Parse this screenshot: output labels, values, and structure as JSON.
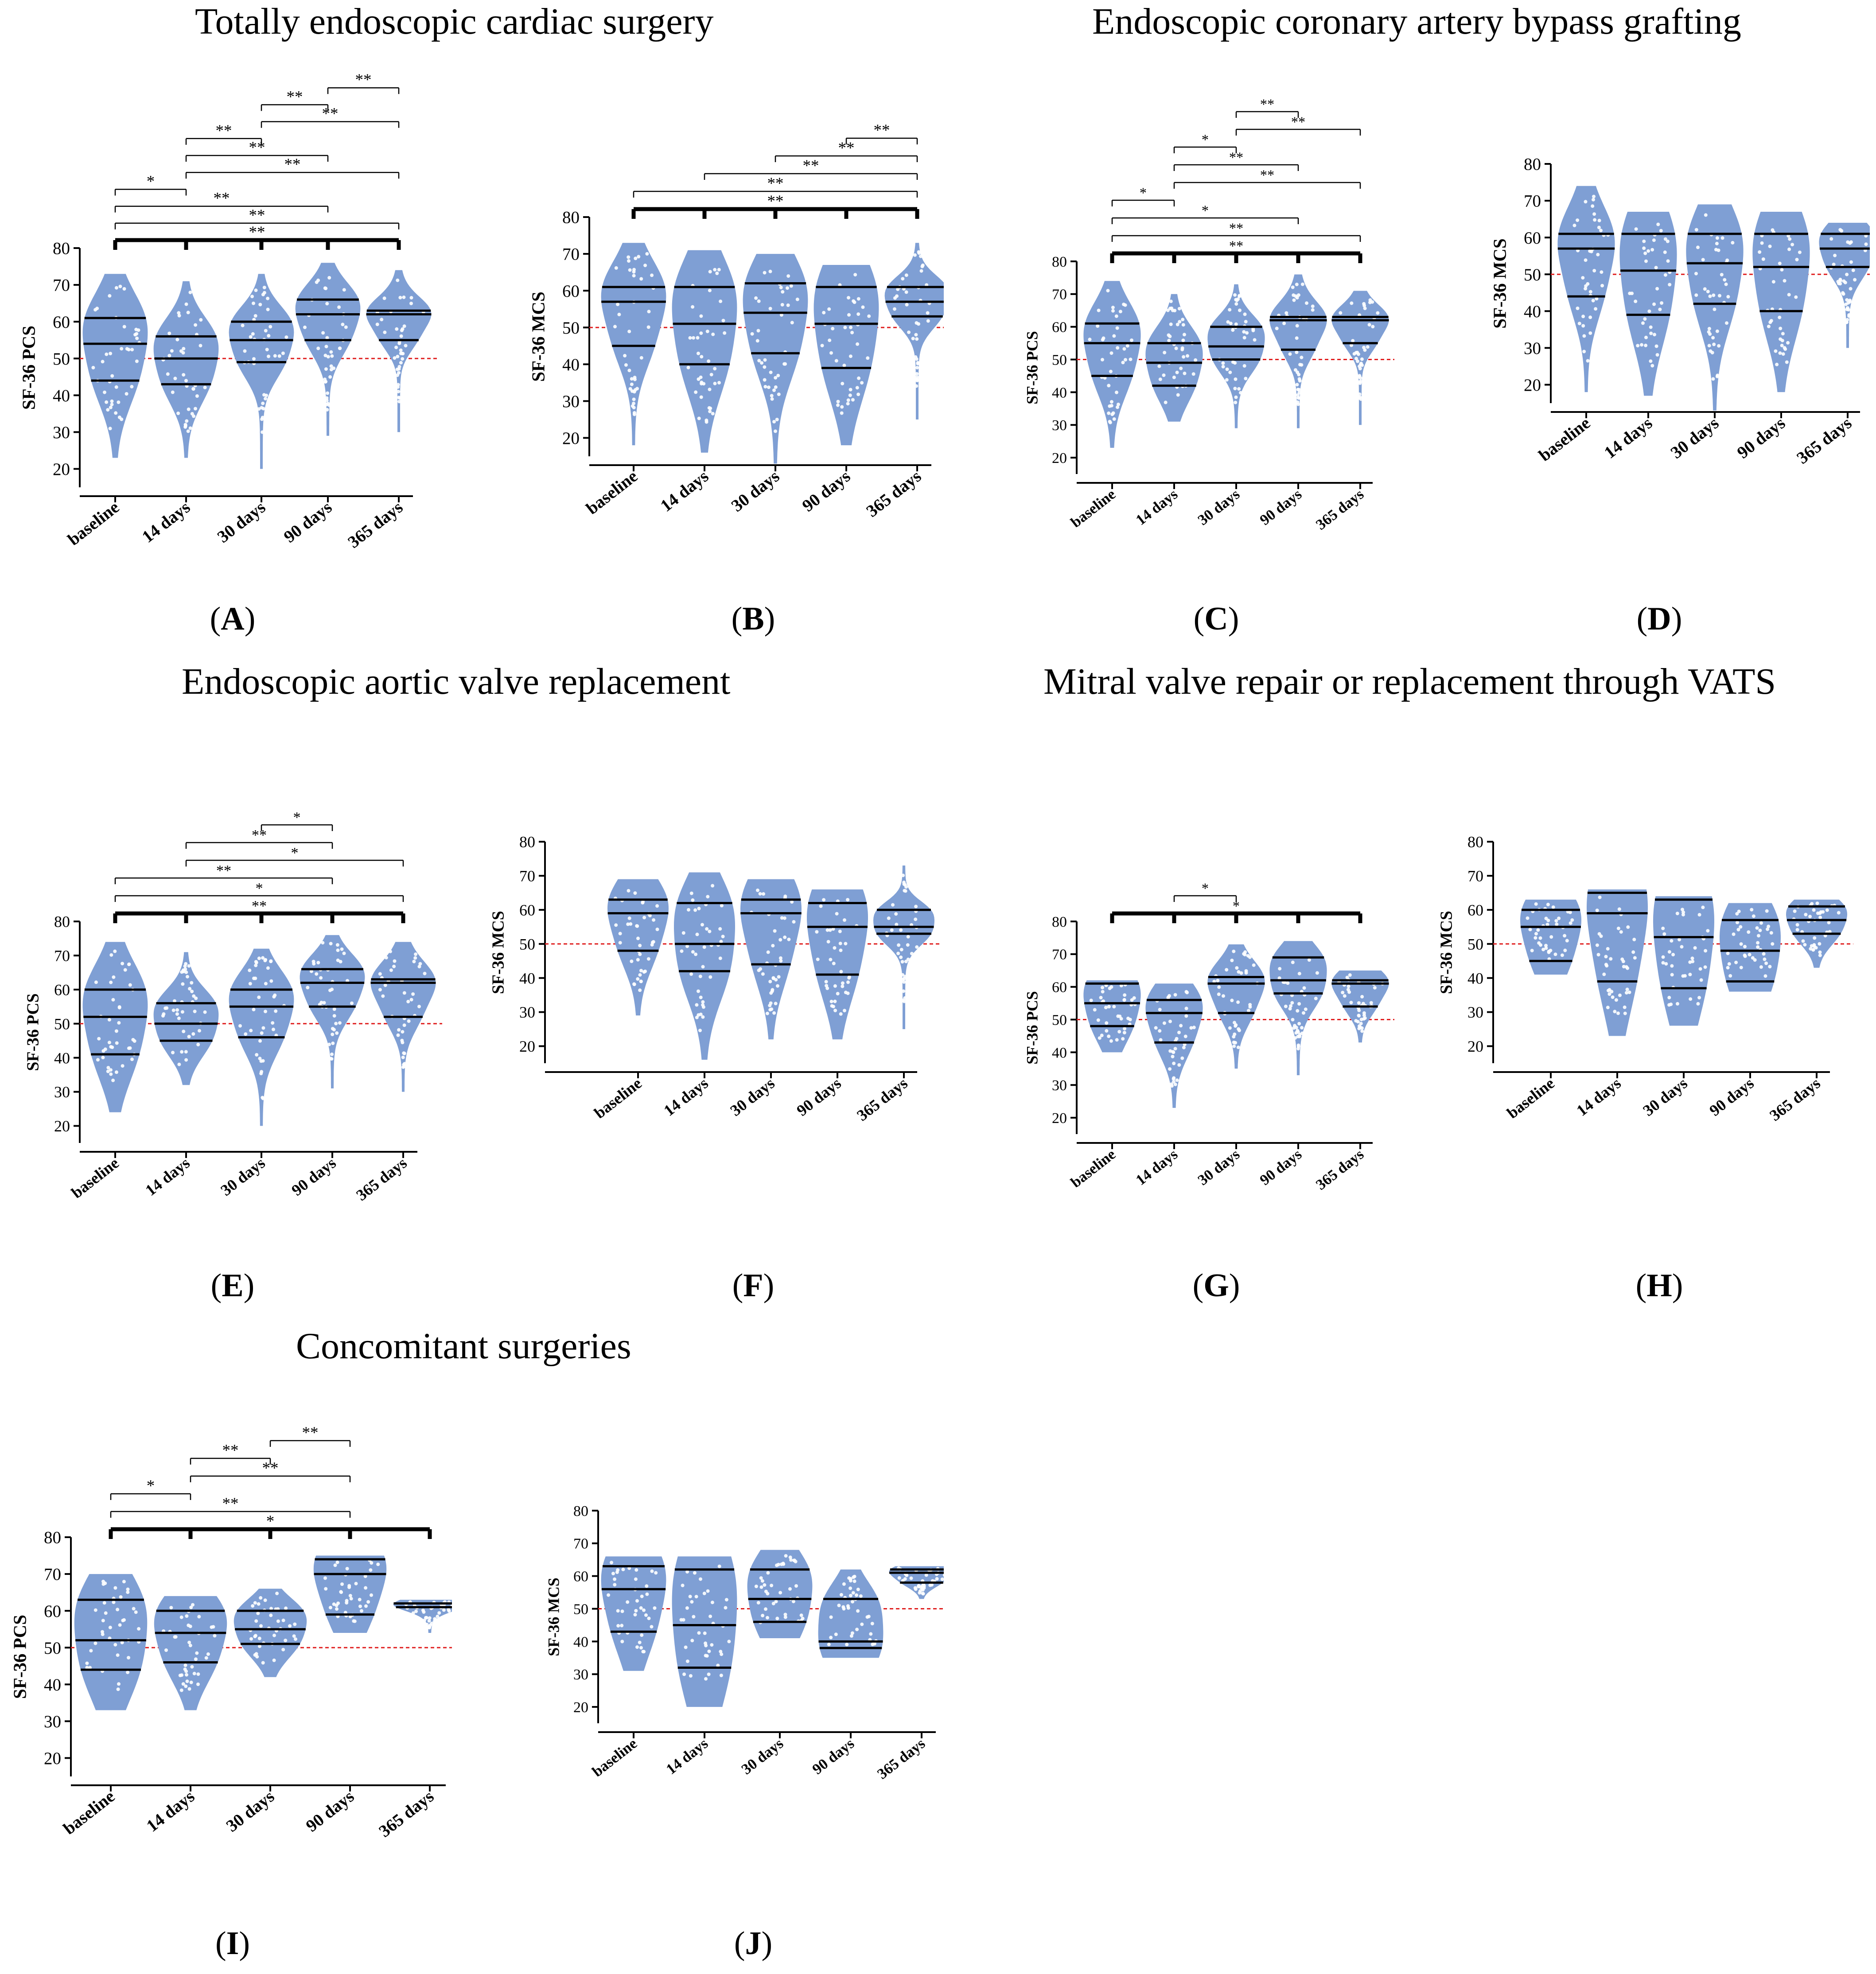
{
  "sections": [
    {
      "title": "Totally endoscopic cardiac surgery"
    },
    {
      "title": "Endoscopic coronary artery bypass grafting"
    },
    {
      "title": "Endoscopic aortic valve replacement"
    },
    {
      "title": "Mitral valve repair or replacement through VATS"
    },
    {
      "title": "Concomitant surgeries"
    }
  ],
  "colors": {
    "violin": "#7f9fd4",
    "dot": "#ffffff",
    "reference": "#e02020",
    "axis": "#000000"
  },
  "chart_data": [
    {
      "id": "A",
      "label_letter": "A",
      "type": "violin",
      "ylabel": "SF-36 PCS",
      "ylim": [
        15,
        80
      ],
      "yticks": [
        20,
        30,
        40,
        50,
        60,
        70,
        80
      ],
      "categories": [
        "baseline",
        "14 days",
        "30 days",
        "90 days",
        "365 days"
      ],
      "reference_line": 50,
      "groups": [
        {
          "min": 23,
          "max": 73,
          "q1": 44,
          "median": 54,
          "q3": 61
        },
        {
          "min": 23,
          "max": 71,
          "q1": 43,
          "median": 50,
          "q3": 56
        },
        {
          "min": 20,
          "max": 73,
          "q1": 49,
          "median": 55,
          "q3": 60
        },
        {
          "min": 29,
          "max": 76,
          "q1": 55,
          "median": 62,
          "q3": 66
        },
        {
          "min": 30,
          "max": 74,
          "q1": 55,
          "median": 62,
          "q3": 63
        }
      ],
      "significance": [
        {
          "from": 0,
          "to": 4,
          "label": "**",
          "bold": true
        },
        {
          "from": 0,
          "to": 4,
          "label": "**"
        },
        {
          "from": 0,
          "to": 3,
          "label": "**"
        },
        {
          "from": 0,
          "to": 1,
          "label": "*"
        },
        {
          "from": 1,
          "to": 4,
          "label": "**"
        },
        {
          "from": 1,
          "to": 3,
          "label": "**"
        },
        {
          "from": 1,
          "to": 2,
          "label": "**"
        },
        {
          "from": 2,
          "to": 4,
          "label": "**"
        },
        {
          "from": 2,
          "to": 3,
          "label": "**"
        },
        {
          "from": 3,
          "to": 4,
          "label": "**"
        }
      ]
    },
    {
      "id": "B",
      "label_letter": "B",
      "type": "violin",
      "ylabel": "SF-36 MCS",
      "ylim": [
        15,
        80
      ],
      "yticks": [
        20,
        30,
        40,
        50,
        60,
        70,
        80
      ],
      "categories": [
        "baseline",
        "14 days",
        "30 days",
        "90 days",
        "365 days"
      ],
      "reference_line": 50,
      "groups": [
        {
          "min": 18,
          "max": 73,
          "q1": 45,
          "median": 57,
          "q3": 61
        },
        {
          "min": 16,
          "max": 71,
          "q1": 40,
          "median": 51,
          "q3": 61
        },
        {
          "min": 13,
          "max": 70,
          "q1": 43,
          "median": 54,
          "q3": 62
        },
        {
          "min": 18,
          "max": 67,
          "q1": 39,
          "median": 51,
          "q3": 61
        },
        {
          "min": 25,
          "max": 73,
          "q1": 53,
          "median": 57,
          "q3": 61
        }
      ],
      "significance": [
        {
          "from": 0,
          "to": 4,
          "label": "**",
          "bold": true
        },
        {
          "from": 0,
          "to": 4,
          "label": "**"
        },
        {
          "from": 1,
          "to": 4,
          "label": "**"
        },
        {
          "from": 2,
          "to": 4,
          "label": "**"
        },
        {
          "from": 3,
          "to": 4,
          "label": "**"
        }
      ]
    },
    {
      "id": "C",
      "label_letter": "C",
      "type": "violin",
      "ylabel": "SF-36 PCS",
      "ylim": [
        15,
        80
      ],
      "yticks": [
        20,
        30,
        40,
        50,
        60,
        70,
        80
      ],
      "categories": [
        "baseline",
        "14 days",
        "30 days",
        "90 days",
        "365 days"
      ],
      "reference_line": 50,
      "groups": [
        {
          "min": 23,
          "max": 74,
          "q1": 45,
          "median": 55,
          "q3": 61
        },
        {
          "min": 31,
          "max": 70,
          "q1": 42,
          "median": 49,
          "q3": 55
        },
        {
          "min": 29,
          "max": 73,
          "q1": 50,
          "median": 54,
          "q3": 60
        },
        {
          "min": 29,
          "max": 76,
          "q1": 53,
          "median": 62,
          "q3": 63
        },
        {
          "min": 30,
          "max": 71,
          "q1": 55,
          "median": 62,
          "q3": 63
        }
      ],
      "significance": [
        {
          "from": 0,
          "to": 4,
          "label": "**",
          "bold": true
        },
        {
          "from": 0,
          "to": 4,
          "label": "**"
        },
        {
          "from": 0,
          "to": 3,
          "label": "*"
        },
        {
          "from": 0,
          "to": 1,
          "label": "*"
        },
        {
          "from": 1,
          "to": 4,
          "label": "**"
        },
        {
          "from": 1,
          "to": 3,
          "label": "**"
        },
        {
          "from": 1,
          "to": 2,
          "label": "*"
        },
        {
          "from": 2,
          "to": 4,
          "label": "**"
        },
        {
          "from": 2,
          "to": 3,
          "label": "**"
        }
      ]
    },
    {
      "id": "D",
      "label_letter": "D",
      "type": "violin",
      "ylabel": "SF-36 MCS",
      "ylim": [
        15,
        80
      ],
      "yticks": [
        20,
        30,
        40,
        50,
        60,
        70,
        80
      ],
      "categories": [
        "baseline",
        "14 days",
        "30 days",
        "90 days",
        "365 days"
      ],
      "reference_line": 50,
      "groups": [
        {
          "min": 18,
          "max": 74,
          "q1": 44,
          "median": 57,
          "q3": 61
        },
        {
          "min": 17,
          "max": 67,
          "q1": 39,
          "median": 51,
          "q3": 61
        },
        {
          "min": 13,
          "max": 69,
          "q1": 42,
          "median": 53,
          "q3": 61
        },
        {
          "min": 18,
          "max": 67,
          "q1": 40,
          "median": 52,
          "q3": 61
        },
        {
          "min": 30,
          "max": 64,
          "q1": 52,
          "median": 57,
          "q3": 61
        }
      ],
      "significance": []
    },
    {
      "id": "E",
      "label_letter": "E",
      "type": "violin",
      "ylabel": "SF-36 PCS",
      "ylim": [
        15,
        80
      ],
      "yticks": [
        20,
        30,
        40,
        50,
        60,
        70,
        80
      ],
      "categories": [
        "baseline",
        "14 days",
        "30 days",
        "90 days",
        "365 days"
      ],
      "reference_line": 50,
      "groups": [
        {
          "min": 24,
          "max": 74,
          "q1": 41,
          "median": 52,
          "q3": 60
        },
        {
          "min": 32,
          "max": 71,
          "q1": 45,
          "median": 50,
          "q3": 56
        },
        {
          "min": 20,
          "max": 72,
          "q1": 46,
          "median": 55,
          "q3": 60
        },
        {
          "min": 31,
          "max": 76,
          "q1": 55,
          "median": 62,
          "q3": 66
        },
        {
          "min": 30,
          "max": 74,
          "q1": 52,
          "median": 62,
          "q3": 63
        }
      ],
      "significance": [
        {
          "from": 0,
          "to": 4,
          "label": "**",
          "bold": true
        },
        {
          "from": 0,
          "to": 4,
          "label": "*"
        },
        {
          "from": 0,
          "to": 3,
          "label": "**"
        },
        {
          "from": 1,
          "to": 4,
          "label": "*"
        },
        {
          "from": 1,
          "to": 3,
          "label": "**"
        },
        {
          "from": 2,
          "to": 3,
          "label": "*"
        }
      ]
    },
    {
      "id": "F",
      "label_letter": "F",
      "type": "violin",
      "ylabel": "SF-36 MCS",
      "ylim": [
        15,
        80
      ],
      "yticks": [
        20,
        30,
        40,
        50,
        60,
        70,
        80
      ],
      "categories": [
        "baseline",
        "14 days",
        "30 days",
        "90 days",
        "365 days"
      ],
      "reference_line": 50,
      "groups": [
        {
          "min": 29,
          "max": 69,
          "q1": 48,
          "median": 59,
          "q3": 63
        },
        {
          "min": 16,
          "max": 71,
          "q1": 42,
          "median": 50,
          "q3": 62
        },
        {
          "min": 22,
          "max": 69,
          "q1": 44,
          "median": 59,
          "q3": 63
        },
        {
          "min": 22,
          "max": 66,
          "q1": 41,
          "median": 55,
          "q3": 62
        },
        {
          "min": 25,
          "max": 73,
          "q1": 53,
          "median": 55,
          "q3": 60
        }
      ],
      "significance": []
    },
    {
      "id": "G",
      "label_letter": "G",
      "type": "violin",
      "ylabel": "SF-36 PCS",
      "ylim": [
        15,
        80
      ],
      "yticks": [
        20,
        30,
        40,
        50,
        60,
        70,
        80
      ],
      "categories": [
        "baseline",
        "14 days",
        "30 days",
        "90 days",
        "365 days"
      ],
      "reference_line": 50,
      "groups": [
        {
          "min": 40,
          "max": 62,
          "q1": 48,
          "median": 55,
          "q3": 61
        },
        {
          "min": 23,
          "max": 61,
          "q1": 43,
          "median": 52,
          "q3": 56
        },
        {
          "min": 35,
          "max": 73,
          "q1": 52,
          "median": 61,
          "q3": 63
        },
        {
          "min": 33,
          "max": 74,
          "q1": 58,
          "median": 62,
          "q3": 69
        },
        {
          "min": 43,
          "max": 65,
          "q1": 54,
          "median": 61,
          "q3": 62
        }
      ],
      "significance": [
        {
          "from": 0,
          "to": 4,
          "label": "*",
          "bold": true
        },
        {
          "from": 1,
          "to": 2,
          "label": "*"
        }
      ]
    },
    {
      "id": "H",
      "label_letter": "H",
      "type": "violin",
      "ylabel": "SF-36 MCS",
      "ylim": [
        15,
        80
      ],
      "yticks": [
        20,
        30,
        40,
        50,
        60,
        70,
        80
      ],
      "categories": [
        "baseline",
        "14 days",
        "30 days",
        "90 days",
        "365 days"
      ],
      "reference_line": 50,
      "groups": [
        {
          "min": 41,
          "max": 63,
          "q1": 45,
          "median": 55,
          "q3": 60
        },
        {
          "min": 23,
          "max": 66,
          "q1": 39,
          "median": 59,
          "q3": 65
        },
        {
          "min": 26,
          "max": 64,
          "q1": 37,
          "median": 52,
          "q3": 63
        },
        {
          "min": 36,
          "max": 62,
          "q1": 39,
          "median": 48,
          "q3": 57
        },
        {
          "min": 43,
          "max": 63,
          "q1": 53,
          "median": 57,
          "q3": 61
        }
      ],
      "significance": []
    },
    {
      "id": "I",
      "label_letter": "I",
      "type": "violin",
      "ylabel": "SF-36 PCS",
      "ylim": [
        15,
        80
      ],
      "yticks": [
        20,
        30,
        40,
        50,
        60,
        70,
        80
      ],
      "categories": [
        "baseline",
        "14 days",
        "30 days",
        "90 days",
        "365 days"
      ],
      "reference_line": 50,
      "groups": [
        {
          "min": 33,
          "max": 70,
          "q1": 44,
          "median": 52,
          "q3": 63
        },
        {
          "min": 33,
          "max": 64,
          "q1": 46,
          "median": 54,
          "q3": 60
        },
        {
          "min": 42,
          "max": 66,
          "q1": 51,
          "median": 55,
          "q3": 60
        },
        {
          "min": 54,
          "max": 75,
          "q1": 59,
          "median": 70,
          "q3": 74
        },
        {
          "min": 54,
          "max": 63,
          "q1": 61,
          "median": 62,
          "q3": 62
        }
      ],
      "significance": [
        {
          "from": 0,
          "to": 4,
          "label": "*",
          "bold": true
        },
        {
          "from": 0,
          "to": 3,
          "label": "**"
        },
        {
          "from": 0,
          "to": 1,
          "label": "*"
        },
        {
          "from": 1,
          "to": 3,
          "label": "**"
        },
        {
          "from": 1,
          "to": 2,
          "label": "**"
        },
        {
          "from": 2,
          "to": 3,
          "label": "**"
        }
      ]
    },
    {
      "id": "J",
      "label_letter": "J",
      "type": "violin",
      "ylabel": "SF-36 MCS",
      "ylim": [
        15,
        80
      ],
      "yticks": [
        20,
        30,
        40,
        50,
        60,
        70,
        80
      ],
      "categories": [
        "baseline",
        "14 days",
        "30 days",
        "90 days",
        "365 days"
      ],
      "reference_line": 50,
      "groups": [
        {
          "min": 31,
          "max": 66,
          "q1": 43,
          "median": 56,
          "q3": 63
        },
        {
          "min": 20,
          "max": 66,
          "q1": 32,
          "median": 45,
          "q3": 62
        },
        {
          "min": 41,
          "max": 68,
          "q1": 46,
          "median": 53,
          "q3": 62
        },
        {
          "min": 35,
          "max": 62,
          "q1": 38,
          "median": 40,
          "q3": 53
        },
        {
          "min": 53,
          "max": 63,
          "q1": 58,
          "median": 61,
          "q3": 62
        }
      ],
      "significance": []
    }
  ]
}
